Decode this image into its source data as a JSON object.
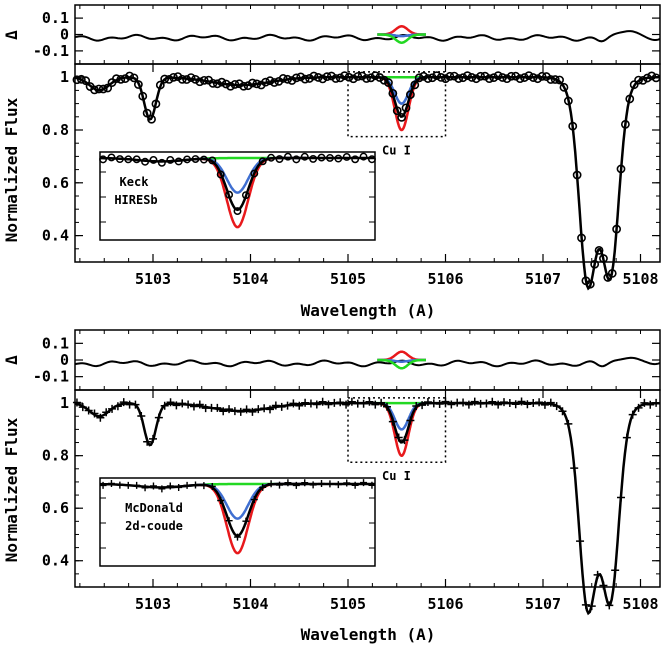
{
  "chart_data": {
    "type": "line",
    "xlabel": "Wavelength (A)",
    "ylabel": "Normalized Flux",
    "delta_label": "Δ",
    "xlim": [
      5102.2,
      5108.2
    ],
    "x_ticks": [
      "5103",
      "5104",
      "5105",
      "5106",
      "5107",
      "5108"
    ],
    "flux_ylim": [
      0.3,
      1.05
    ],
    "flux_ticks": [
      "1",
      "0.8",
      "0.6",
      "0.4"
    ],
    "delta_ylim": [
      -0.18,
      0.18
    ],
    "delta_ticks": [
      "0.1",
      "0",
      "-0.1"
    ],
    "line_label": "Cu I",
    "line_center": 5105.55,
    "line_box": [
      5105.0,
      5106.0,
      0.775,
      1.02
    ],
    "model_colors": {
      "strong": "#e8191c",
      "best": "#000000",
      "weak": "#3f6fd1",
      "none": "#22d822"
    },
    "model_depths": {
      "strong": 0.2,
      "best": 0.15,
      "weak": 0.1,
      "none": 0.0
    },
    "features": [
      {
        "center": 5102.45,
        "depth": 0.05,
        "width": 0.1
      },
      {
        "center": 5102.97,
        "depth": 0.16,
        "width": 0.06
      },
      {
        "center": 5103.9,
        "depth": 0.03,
        "width": 0.3
      },
      {
        "center": 5107.45,
        "depth": 0.52,
        "width": 0.08
      },
      {
        "center": 5107.7,
        "depth": 0.5,
        "width": 0.08
      },
      {
        "center": 5107.57,
        "depth": 0.35,
        "width": 0.16
      }
    ],
    "panels": [
      {
        "name": "keck",
        "instrument": [
          "Keck",
          "HIRESb"
        ],
        "marker": "circle"
      },
      {
        "name": "mcdonald",
        "instrument": [
          "McDonald",
          "2d-coude"
        ],
        "marker": "plus"
      }
    ]
  }
}
